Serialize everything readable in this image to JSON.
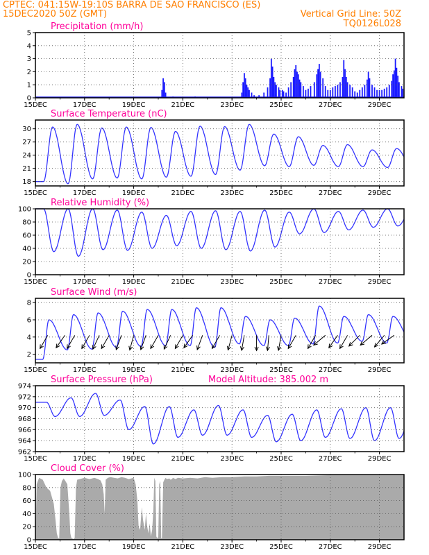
{
  "header": {
    "line1_left": "CPTEC:   041:15W-19:10S   BARRA DE SAO FRANCISCO (ES)",
    "line2_left": "15DEC2020 50Z (GMT)",
    "line2_right": "Vertical Grid Line: 50Z",
    "line3_right": "TQ0126L028"
  },
  "colors": {
    "header": "#ff7f00",
    "panel_title": "#ff0099",
    "line": "#3333ff",
    "bar": "#1a1aff",
    "cloud": "#aaaaaa"
  },
  "chart_data": [
    {
      "type": "bar",
      "title": "Precipitation (mm/h)",
      "categories": [
        "15DEC",
        "17DEC",
        "19DEC",
        "21DEC",
        "23DEC",
        "25DEC",
        "27DEC",
        "29DEC"
      ],
      "x_start_day": 15,
      "x_end_day": 30.0,
      "ylim": [
        0,
        5
      ],
      "yticks": [
        "0",
        "1",
        "2",
        "3",
        "4",
        "5"
      ],
      "grid": true,
      "bars": [
        [
          20.15,
          0.6
        ],
        [
          20.2,
          1.5
        ],
        [
          20.25,
          1.2
        ],
        [
          20.3,
          0.4
        ],
        [
          20.6,
          0.1
        ],
        [
          21.5,
          0.1
        ],
        [
          23.4,
          0.4
        ],
        [
          23.45,
          1.2
        ],
        [
          23.5,
          1.9
        ],
        [
          23.55,
          1.5
        ],
        [
          23.6,
          1.0
        ],
        [
          23.65,
          0.8
        ],
        [
          23.7,
          0.6
        ],
        [
          23.8,
          0.4
        ],
        [
          23.9,
          0.2
        ],
        [
          24.1,
          0.2
        ],
        [
          24.3,
          0.4
        ],
        [
          24.45,
          0.8
        ],
        [
          24.55,
          1.5
        ],
        [
          24.6,
          3.0
        ],
        [
          24.65,
          2.4
        ],
        [
          24.7,
          1.6
        ],
        [
          24.75,
          1.2
        ],
        [
          24.8,
          1.0
        ],
        [
          24.9,
          0.8
        ],
        [
          24.95,
          0.6
        ],
        [
          25.05,
          0.6
        ],
        [
          25.1,
          0.5
        ],
        [
          25.2,
          0.4
        ],
        [
          25.3,
          0.8
        ],
        [
          25.4,
          1.2
        ],
        [
          25.5,
          1.6
        ],
        [
          25.55,
          2.2
        ],
        [
          25.6,
          2.5
        ],
        [
          25.65,
          2.0
        ],
        [
          25.7,
          1.8
        ],
        [
          25.75,
          1.4
        ],
        [
          25.8,
          1.2
        ],
        [
          25.9,
          0.9
        ],
        [
          26.0,
          0.6
        ],
        [
          26.1,
          0.7
        ],
        [
          26.2,
          0.9
        ],
        [
          26.35,
          1.2
        ],
        [
          26.45,
          1.8
        ],
        [
          26.5,
          2.2
        ],
        [
          26.55,
          2.6
        ],
        [
          26.6,
          2.0
        ],
        [
          26.7,
          1.5
        ],
        [
          26.8,
          0.9
        ],
        [
          26.9,
          0.6
        ],
        [
          27.0,
          0.6
        ],
        [
          27.1,
          0.8
        ],
        [
          27.2,
          0.9
        ],
        [
          27.3,
          1.0
        ],
        [
          27.4,
          1.2
        ],
        [
          27.5,
          1.6
        ],
        [
          27.55,
          2.9
        ],
        [
          27.6,
          2.2
        ],
        [
          27.65,
          1.6
        ],
        [
          27.7,
          1.2
        ],
        [
          27.8,
          1.0
        ],
        [
          27.9,
          0.8
        ],
        [
          28.0,
          0.5
        ],
        [
          28.1,
          0.4
        ],
        [
          28.2,
          0.6
        ],
        [
          28.3,
          0.8
        ],
        [
          28.4,
          1.0
        ],
        [
          28.5,
          1.4
        ],
        [
          28.55,
          2.0
        ],
        [
          28.6,
          1.5
        ],
        [
          28.7,
          1.0
        ],
        [
          28.8,
          0.8
        ],
        [
          28.9,
          0.6
        ],
        [
          29.0,
          0.6
        ],
        [
          29.1,
          0.6
        ],
        [
          29.2,
          0.7
        ],
        [
          29.3,
          0.8
        ],
        [
          29.4,
          1.0
        ],
        [
          29.5,
          1.3
        ],
        [
          29.55,
          1.8
        ],
        [
          29.6,
          2.1
        ],
        [
          29.65,
          3.0
        ],
        [
          29.7,
          2.3
        ],
        [
          29.75,
          1.7
        ],
        [
          29.8,
          1.2
        ],
        [
          29.9,
          0.9
        ],
        [
          29.95,
          0.7
        ]
      ]
    },
    {
      "type": "line",
      "title": "Surface Temperature (nC)",
      "categories": [
        "15DEC",
        "17DEC",
        "19DEC",
        "21DEC",
        "23DEC",
        "25DEC",
        "27DEC",
        "29DEC"
      ],
      "x_start_day": 15,
      "x_end_day": 30.0,
      "ylim": [
        17,
        32
      ],
      "yticks": [
        "18",
        "21",
        "24",
        "27",
        "30"
      ],
      "ytick_values": [
        18,
        21,
        24,
        27,
        30
      ],
      "grid": true,
      "daily_min": [
        18.0,
        17.5,
        18.6,
        18.8,
        18.6,
        19.0,
        19.2,
        19.6,
        20.6,
        21.6,
        21.4,
        21.7,
        21.4,
        21.4,
        21.2,
        21.5
      ],
      "daily_max": [
        30.4,
        31.0,
        30.2,
        30.4,
        30.3,
        29.4,
        30.6,
        30.5,
        31.0,
        28.8,
        28.2,
        26.2,
        26.4,
        25.2,
        25.5,
        26.2
      ],
      "max_phase": 0.7,
      "min_phase": 0.33
    },
    {
      "type": "line",
      "title": "Relative Humidity (%)",
      "categories": [
        "15DEC",
        "17DEC",
        "19DEC",
        "21DEC",
        "23DEC",
        "25DEC",
        "27DEC",
        "29DEC"
      ],
      "x_start_day": 15,
      "x_end_day": 30.0,
      "ylim": [
        0,
        100
      ],
      "yticks": [
        "0",
        "20",
        "40",
        "60",
        "80",
        "100"
      ],
      "ytick_values": [
        0,
        20,
        40,
        60,
        80,
        100
      ],
      "grid": true,
      "daily_min": [
        35,
        28,
        38,
        37,
        40,
        44,
        40,
        38,
        36,
        42,
        62,
        64,
        68,
        72,
        74,
        70
      ],
      "daily_max": [
        100,
        100,
        100,
        98,
        95,
        90,
        96,
        97,
        96,
        98,
        95,
        100,
        96,
        98,
        100,
        100
      ],
      "max_phase": 0.33,
      "min_phase": 0.75
    },
    {
      "type": "line",
      "title": "Surface Wind (m/s)",
      "categories": [
        "15DEC",
        "17DEC",
        "19DEC",
        "21DEC",
        "23DEC",
        "25DEC",
        "27DEC",
        "29DEC"
      ],
      "x_start_day": 15,
      "x_end_day": 30.0,
      "ylim": [
        1,
        8.5
      ],
      "yticks": [
        "2",
        "4",
        "6",
        "8"
      ],
      "ytick_values": [
        2,
        4,
        6,
        8
      ],
      "grid": true,
      "daily_min": [
        1.4,
        2.5,
        2.6,
        2.8,
        2.9,
        3.0,
        3.0,
        2.8,
        3.2,
        3.0,
        3.0,
        3.2,
        3.3,
        3.5,
        3.3,
        3.6
      ],
      "daily_max": [
        6.0,
        6.6,
        6.8,
        7.0,
        7.2,
        7.2,
        7.4,
        7.4,
        6.4,
        6.0,
        6.2,
        7.6,
        6.4,
        6.6,
        6.4,
        6.0
      ],
      "max_phase": 0.55,
      "min_phase": 0.3,
      "vectors": [
        [
          15.5,
          300
        ],
        [
          16.2,
          305
        ],
        [
          16.6,
          300
        ],
        [
          17.2,
          300
        ],
        [
          17.6,
          295
        ],
        [
          18.0,
          300
        ],
        [
          18.5,
          290
        ],
        [
          19.0,
          285
        ],
        [
          19.5,
          290
        ],
        [
          20.0,
          300
        ],
        [
          20.5,
          295
        ],
        [
          21.0,
          300
        ],
        [
          21.4,
          305
        ],
        [
          21.8,
          290
        ],
        [
          22.5,
          300
        ],
        [
          23.0,
          285
        ],
        [
          23.5,
          280
        ],
        [
          24.0,
          270
        ],
        [
          24.5,
          275
        ],
        [
          25.0,
          280
        ],
        [
          25.6,
          300
        ],
        [
          26.4,
          300
        ],
        [
          26.8,
          320
        ],
        [
          27.3,
          305
        ],
        [
          27.7,
          300
        ],
        [
          28.2,
          315
        ],
        [
          28.7,
          320
        ],
        [
          29.2,
          310
        ],
        [
          29.6,
          325
        ]
      ]
    },
    {
      "type": "line",
      "title": "Surface Pressure (hPa)",
      "annotation": "Model Altitude: 385.002 m",
      "categories": [
        "15DEC",
        "17DEC",
        "19DEC",
        "21DEC",
        "23DEC",
        "25DEC",
        "27DEC",
        "29DEC"
      ],
      "x_start_day": 15,
      "x_end_day": 30.0,
      "ylim": [
        962,
        974
      ],
      "yticks": [
        "962",
        "964",
        "966",
        "968",
        "970",
        "972",
        "974"
      ],
      "ytick_values": [
        962,
        964,
        966,
        968,
        970,
        972,
        974
      ],
      "grid": true,
      "daily_min": [
        968.4,
        968.4,
        968.6,
        966.0,
        963.4,
        964.6,
        965.0,
        965.0,
        964.6,
        963.8,
        964.0,
        964.6,
        964.4,
        964.0,
        964.4,
        965.0
      ],
      "daily_max": [
        971.0,
        971.8,
        972.6,
        971.4,
        970.2,
        970.2,
        969.6,
        970.4,
        969.6,
        968.6,
        968.8,
        969.6,
        969.8,
        970.0,
        970.0,
        970.6
      ],
      "max_phase": 0.45,
      "min_phase": 0.8
    },
    {
      "type": "area",
      "title": "Cloud Cover (%)",
      "categories": [
        "15DEC",
        "17DEC",
        "19DEC",
        "21DEC",
        "23DEC",
        "25DEC",
        "27DEC",
        "29DEC"
      ],
      "x_start_day": 15,
      "x_end_day": 30.0,
      "ylim": [
        0,
        100
      ],
      "yticks": [
        "0",
        "20",
        "40",
        "60",
        "80",
        "100"
      ],
      "ytick_values": [
        0,
        20,
        40,
        60,
        80,
        100
      ],
      "grid": true,
      "x": [
        15.0,
        15.05,
        15.15,
        15.3,
        15.45,
        15.6,
        15.75,
        15.82,
        15.87,
        15.92,
        15.97,
        16.02,
        16.08,
        16.15,
        16.22,
        16.3,
        16.38,
        16.42,
        16.46,
        16.5,
        16.55,
        16.6,
        16.65,
        16.7,
        17.0,
        17.2,
        17.4,
        17.55,
        17.65,
        17.72,
        17.78,
        17.82,
        17.86,
        17.95,
        18.05,
        18.2,
        18.35,
        18.5,
        18.65,
        18.8,
        18.9,
        19.0,
        19.08,
        19.15,
        19.2,
        19.26,
        19.33,
        19.38,
        19.45,
        19.5,
        19.55,
        19.6,
        19.65,
        19.7,
        19.75,
        19.8,
        19.84,
        19.88,
        19.92,
        19.96,
        20.0,
        20.04,
        20.08,
        20.12,
        20.15,
        20.2,
        20.25,
        20.3,
        20.35,
        20.45,
        20.5,
        20.55,
        20.6,
        20.65,
        20.7,
        20.8,
        21.0,
        21.3,
        21.6,
        21.9,
        22.2,
        22.6,
        23.0,
        23.5,
        24.0,
        24.5,
        25.0,
        26.0,
        27.0,
        28.0,
        29.0,
        30.0
      ],
      "y": [
        0,
        85,
        95,
        92,
        80,
        75,
        55,
        30,
        10,
        3,
        2,
        80,
        90,
        94,
        90,
        85,
        40,
        10,
        3,
        2,
        1,
        3,
        80,
        92,
        95,
        93,
        95,
        93,
        91,
        85,
        70,
        40,
        92,
        95,
        96,
        95,
        94,
        96,
        95,
        93,
        94,
        95,
        85,
        60,
        20,
        15,
        50,
        30,
        15,
        40,
        20,
        10,
        25,
        5,
        15,
        45,
        95,
        90,
        5,
        2,
        5,
        85,
        90,
        2,
        3,
        88,
        92,
        95,
        93,
        94,
        92,
        93,
        95,
        94,
        93,
        95,
        94,
        95,
        94,
        96,
        95,
        96,
        96,
        97,
        97,
        98,
        98,
        98,
        99,
        99,
        99,
        99
      ]
    }
  ]
}
